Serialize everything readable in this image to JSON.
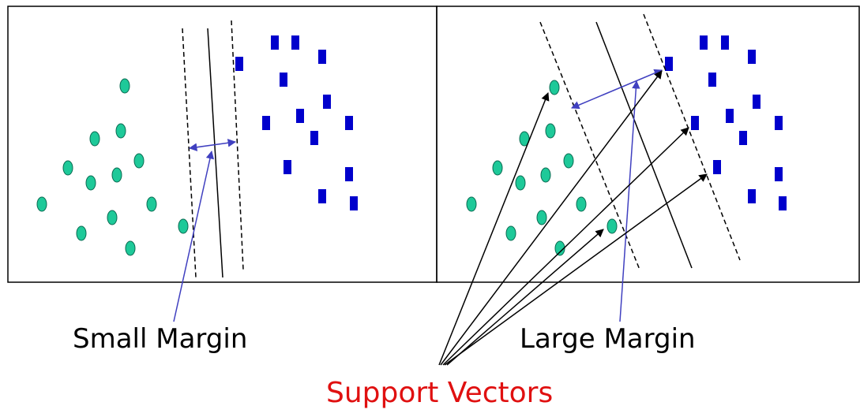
{
  "labels": {
    "small_margin": "Small Margin",
    "large_margin": "Large Margin",
    "support_vectors": "Support Vectors"
  },
  "colors": {
    "circle_fill": "#1ec999",
    "square_fill": "#0000cc",
    "margin_arrow": "#4040c0",
    "support_vectors_text": "#e01010",
    "line": "#000000"
  }
}
